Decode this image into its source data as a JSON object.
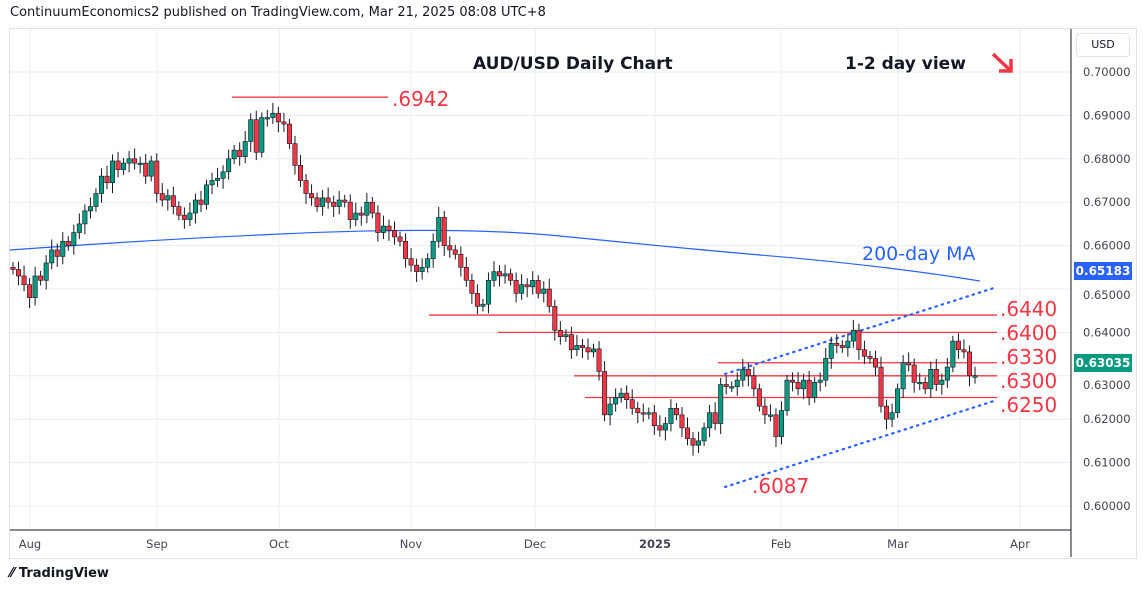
{
  "header": "ContinuumEconomics2 published on TradingView.com, Mar 21, 2025 08:08 UTC+8",
  "footer_logo": "TradingView",
  "currency": "USD",
  "tags": {
    "ma_value": "0.65183",
    "last_price": "0.63035",
    "ma_color": "#2962ff",
    "last_color": "#089981"
  },
  "chart_data": {
    "type": "candlestick",
    "title": "AUD/USD Daily Chart",
    "subtitle": "1-2 day view",
    "subtitle_icon": "arrow-down-right-icon",
    "ylim": [
      0.595,
      0.7075
    ],
    "yticks": [
      "0.70000",
      "0.69000",
      "0.68000",
      "0.67000",
      "0.66000",
      "0.65000",
      "0.64000",
      "0.63000",
      "0.62000",
      "0.61000",
      "0.60000"
    ],
    "xticks": [
      "Aug",
      "Sep",
      "Oct",
      "Nov",
      "Dec",
      "2025",
      "Feb",
      "Mar",
      "Apr"
    ],
    "grid": true,
    "colors": {
      "up": "#089981",
      "down": "#f23645"
    },
    "closes": [
      0.6545,
      0.653,
      0.651,
      0.648,
      0.653,
      0.652,
      0.656,
      0.659,
      0.6575,
      0.661,
      0.66,
      0.663,
      0.665,
      0.668,
      0.669,
      0.672,
      0.676,
      0.6745,
      0.6795,
      0.6775,
      0.679,
      0.68,
      0.679,
      0.679,
      0.676,
      0.6795,
      0.672,
      0.6705,
      0.6715,
      0.669,
      0.667,
      0.666,
      0.6675,
      0.6705,
      0.6695,
      0.674,
      0.675,
      0.6755,
      0.677,
      0.68,
      0.682,
      0.6805,
      0.684,
      0.689,
      0.6815,
      0.6895,
      0.6895,
      0.6905,
      0.6885,
      0.688,
      0.6835,
      0.6785,
      0.675,
      0.672,
      0.671,
      0.669,
      0.671,
      0.67,
      0.669,
      0.6705,
      0.67,
      0.666,
      0.6675,
      0.667,
      0.67,
      0.6675,
      0.663,
      0.6645,
      0.6635,
      0.662,
      0.661,
      0.657,
      0.6555,
      0.654,
      0.655,
      0.657,
      0.661,
      0.6665,
      0.66,
      0.659,
      0.658,
      0.655,
      0.652,
      0.649,
      0.646,
      0.6465,
      0.652,
      0.654,
      0.653,
      0.6535,
      0.652,
      0.649,
      0.651,
      0.6505,
      0.652,
      0.649,
      0.65,
      0.646,
      0.6405,
      0.639,
      0.6395,
      0.636,
      0.637,
      0.6365,
      0.6355,
      0.6362,
      0.631,
      0.621,
      0.6235,
      0.625,
      0.626,
      0.6245,
      0.6225,
      0.6215,
      0.6212,
      0.6215,
      0.6185,
      0.6175,
      0.619,
      0.6225,
      0.621,
      0.618,
      0.6155,
      0.614,
      0.615,
      0.618,
      0.6215,
      0.619,
      0.628,
      0.6275,
      0.6275,
      0.629,
      0.6315,
      0.63,
      0.627,
      0.623,
      0.621,
      0.621,
      0.616,
      0.622,
      0.629,
      0.6285,
      0.627,
      0.629,
      0.625,
      0.6285,
      0.629,
      0.634,
      0.6375,
      0.637,
      0.6365,
      0.638,
      0.6405,
      0.636,
      0.6345,
      0.634,
      0.632,
      0.623,
      0.62,
      0.6215,
      0.627,
      0.633,
      0.6325,
      0.6285,
      0.6285,
      0.627,
      0.6315,
      0.628,
      0.629,
      0.632,
      0.638,
      0.636,
      0.6355,
      0.63,
      0.63
    ],
    "ma_label": "200-day MA",
    "levels": [
      {
        "label": ".6942",
        "value": 0.6942
      },
      {
        "label": ".6440",
        "value": 0.644
      },
      {
        "label": ".6400",
        "value": 0.64
      },
      {
        "label": ".6330",
        "value": 0.633
      },
      {
        "label": ".6300",
        "value": 0.63
      },
      {
        "label": ".6250",
        "value": 0.625
      }
    ],
    "low_label": ".6087"
  }
}
